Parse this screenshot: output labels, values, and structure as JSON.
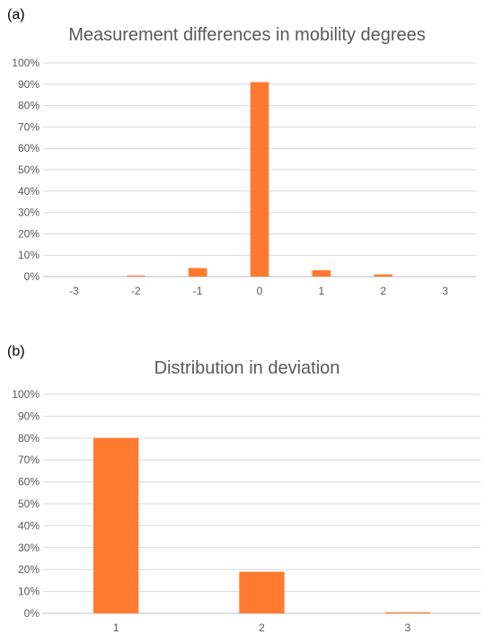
{
  "chart_data": [
    {
      "type": "bar",
      "panel_label": "(a)",
      "title": "Measurement differences in mobility degrees",
      "xlabel": "",
      "ylabel": "",
      "categories": [
        "-3",
        "-2",
        "-1",
        "0",
        "1",
        "2",
        "3"
      ],
      "values": [
        0,
        0.5,
        4,
        91,
        3,
        1,
        0
      ],
      "ylim": [
        0,
        100
      ],
      "yticks": [
        "0%",
        "10%",
        "20%",
        "30%",
        "40%",
        "50%",
        "60%",
        "70%",
        "80%",
        "90%",
        "100%"
      ],
      "grid": true,
      "bar_color": "#FF7A2F"
    },
    {
      "type": "bar",
      "panel_label": "(b)",
      "title": "Distribution in deviation",
      "xlabel": "",
      "ylabel": "",
      "categories": [
        "1",
        "2",
        "3"
      ],
      "values": [
        80,
        19,
        0.5
      ],
      "ylim": [
        0,
        100
      ],
      "yticks": [
        "0%",
        "10%",
        "20%",
        "30%",
        "40%",
        "50%",
        "60%",
        "70%",
        "80%",
        "90%",
        "100%"
      ],
      "grid": true,
      "bar_color": "#FF7A2F"
    }
  ]
}
